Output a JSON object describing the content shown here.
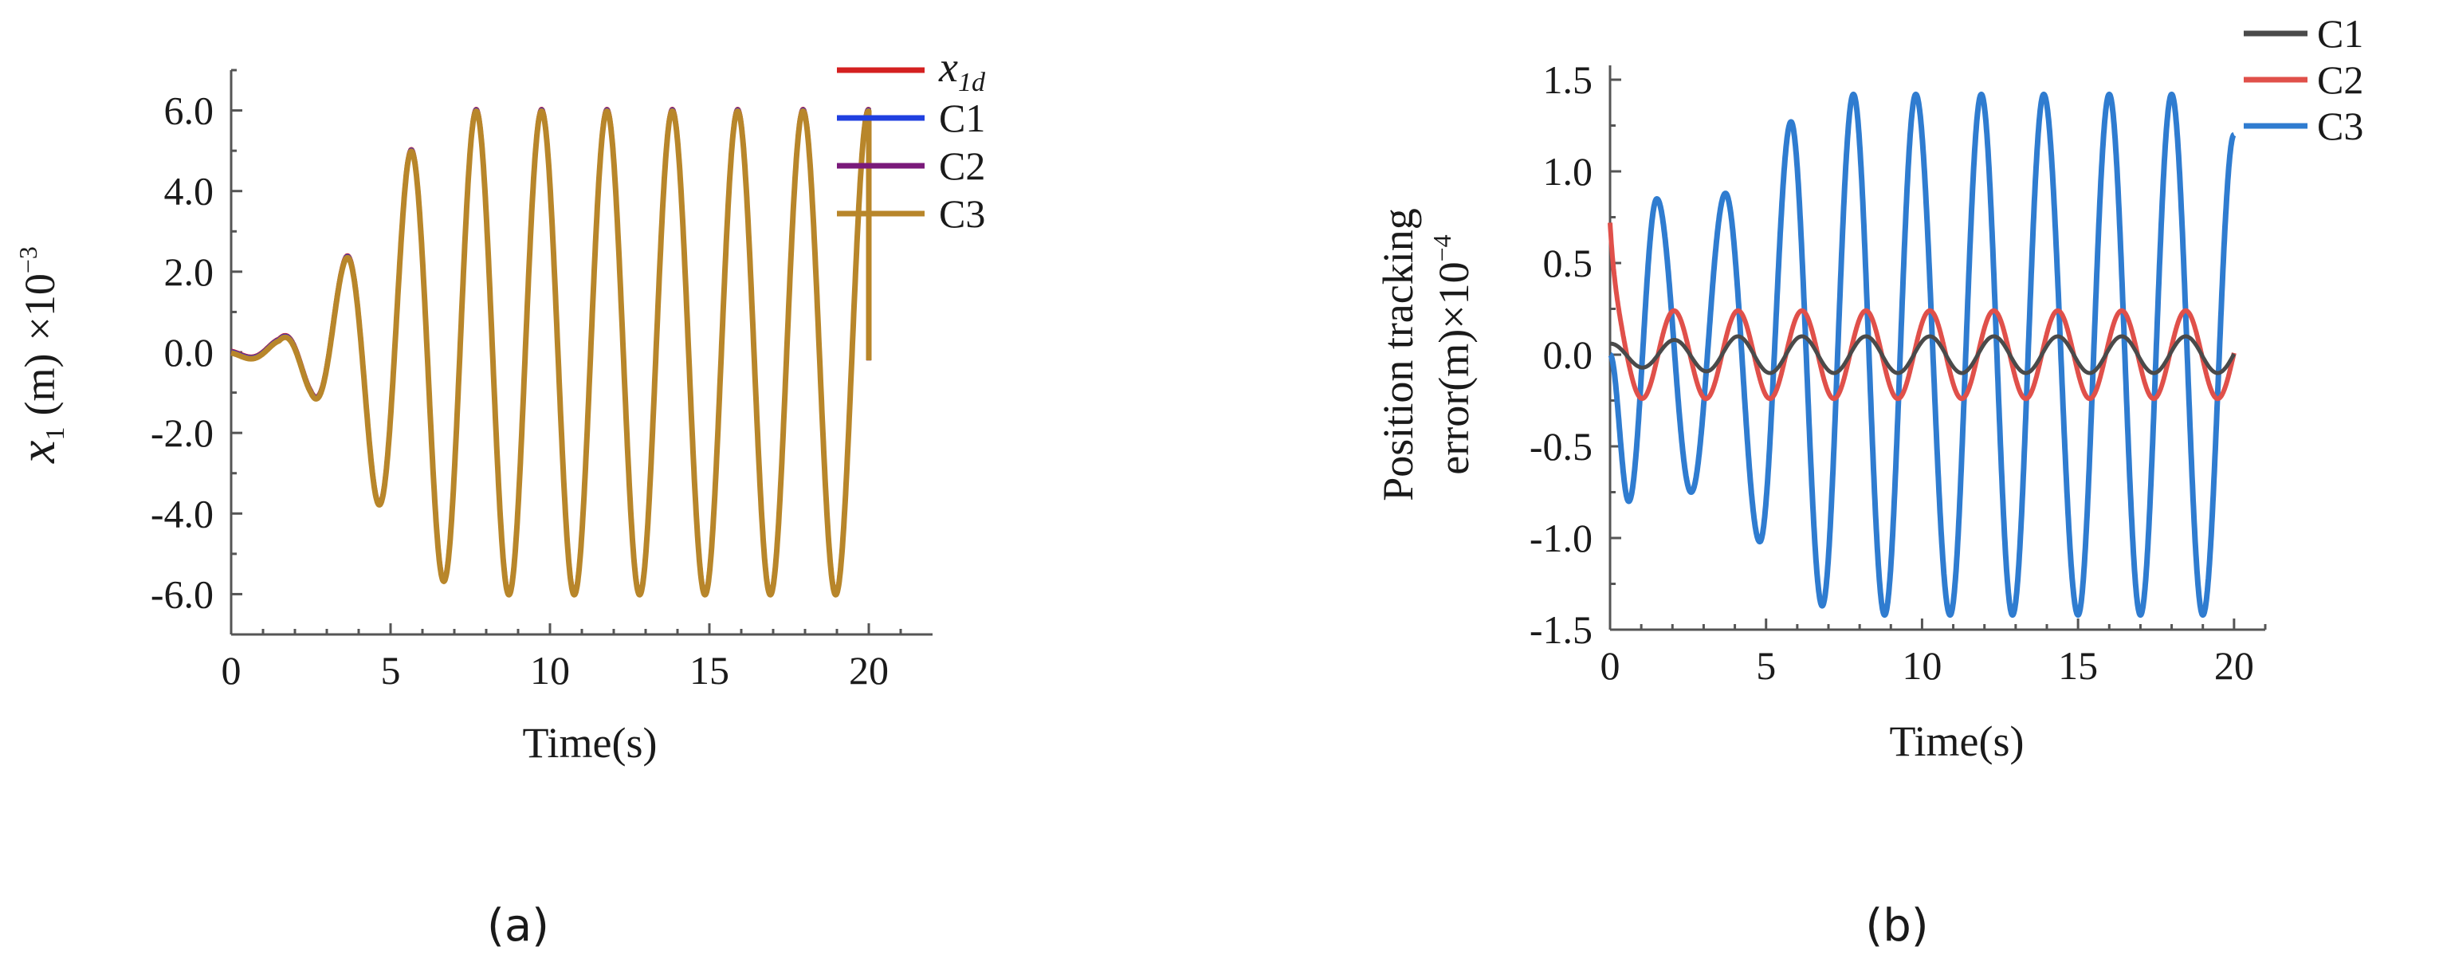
{
  "chart_data": [
    {
      "panel_label": "(a)",
      "type": "line",
      "xlabel": "Time(s)",
      "ylabel": {
        "symbol": "x",
        "subscript": "1",
        "unit": "(m)",
        "multiplier": "×10",
        "exponent": "−3"
      },
      "xlim": [
        0,
        22
      ],
      "ylim": [
        -7,
        7
      ],
      "x_ticks": [
        "0",
        "5",
        "10",
        "15",
        "20"
      ],
      "x_tick_values": [
        0,
        5,
        10,
        15,
        20
      ],
      "y_ticks": [
        "6.0",
        "4.0",
        "2.0",
        "0.0",
        "-2.0",
        "-4.0",
        "-6.0"
      ],
      "y_tick_values": [
        6,
        4,
        2,
        0,
        -2,
        -4,
        -6
      ],
      "legend": "top-right",
      "series": [
        {
          "name": "x",
          "name_subscript": "1d",
          "color": "#d42020"
        },
        {
          "name": "C1",
          "color": "#2040e0"
        },
        {
          "name": "C2",
          "color": "#7a1a7a"
        },
        {
          "name": "C3",
          "color": "#b8862a"
        }
      ],
      "signal": {
        "x_range": [
          0,
          20
        ],
        "period": 2.05,
        "phase_at_zero_deg": 180,
        "envelope_time": [
          0,
          1.5,
          2.5,
          3.5,
          4.5,
          5.5,
          6.5,
          7.5,
          20
        ],
        "envelope_amplitude": [
          0.05,
          0.3,
          1.0,
          2.2,
          3.6,
          4.9,
          5.6,
          6.0,
          6.0
        ],
        "end_value": -0.2
      }
    },
    {
      "panel_label": "(b)",
      "type": "line",
      "xlabel": "Time(s)",
      "ylabel_line1": "Position  tracking",
      "ylabel_line2": {
        "text": "error(m)×10",
        "exponent": "−4"
      },
      "xlim": [
        0,
        21
      ],
      "ylim": [
        -1.5,
        1.5
      ],
      "x_ticks": [
        "0",
        "5",
        "10",
        "15",
        "20"
      ],
      "x_tick_values": [
        0,
        5,
        10,
        15,
        20
      ],
      "y_ticks": [
        "1.5",
        "1.0",
        "0.5",
        "0.0",
        "-0.5",
        "-1.0",
        "-1.5"
      ],
      "y_tick_values": [
        1.5,
        1.0,
        0.5,
        0.0,
        -0.5,
        -1.0,
        -1.5
      ],
      "legend": "top-right",
      "series": [
        {
          "name": "C1",
          "color": "#4a4a4a",
          "amplitude": 0.1,
          "period": 2.05
        },
        {
          "name": "C2",
          "color": "#e0504a",
          "amplitude": 0.24,
          "period": 2.05,
          "initial_peak": 0.72
        },
        {
          "name": "C3",
          "color": "#2f7cd0",
          "peak_times": [
            1.5,
            3.7,
            5.8,
            7.8,
            9.8,
            11.9,
            13.9,
            16.0,
            18.0
          ],
          "peak_values": [
            0.85,
            0.88,
            1.27,
            1.42,
            1.42,
            1.42,
            1.42,
            1.42,
            1.42
          ],
          "trough_times": [
            0.6,
            2.6,
            4.8,
            6.8,
            8.8,
            10.9,
            12.9,
            15.0,
            17.0,
            19.0
          ],
          "trough_values": [
            -0.8,
            -0.75,
            -1.02,
            -1.37,
            -1.42,
            -1.42,
            -1.42,
            -1.42,
            -1.42,
            -1.42
          ],
          "start_value": 0.0,
          "end_value": 1.2
        }
      ]
    }
  ]
}
